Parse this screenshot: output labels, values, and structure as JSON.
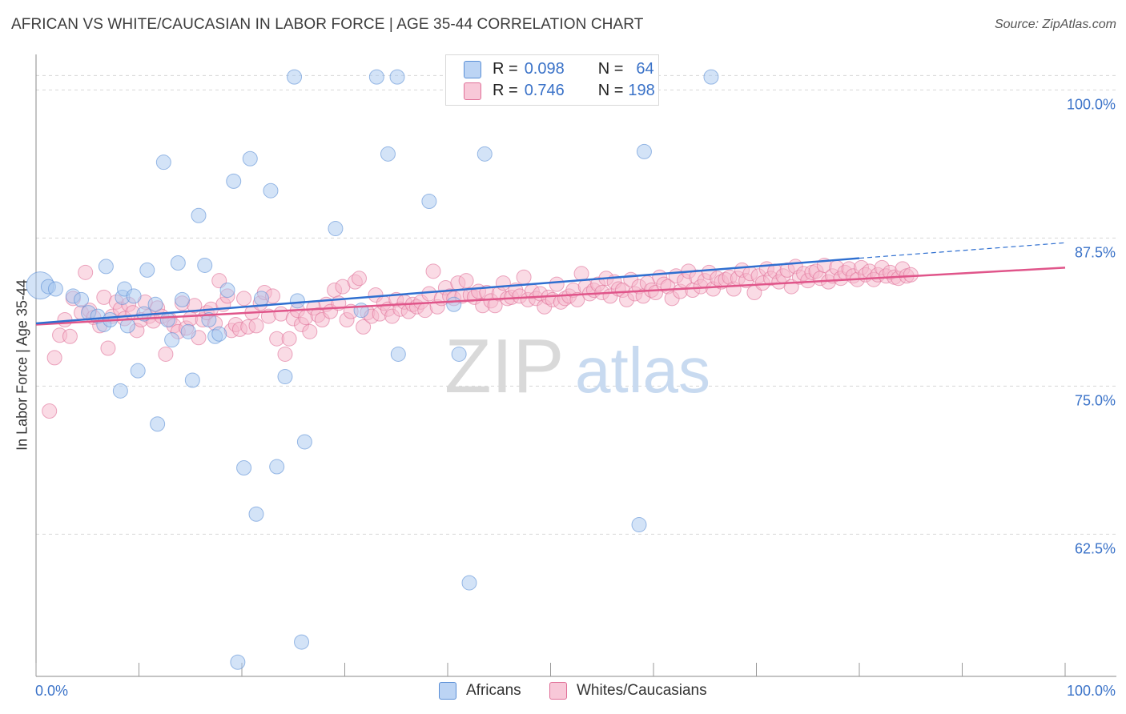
{
  "title": "AFRICAN VS WHITE/CAUCASIAN IN LABOR FORCE | AGE 35-44 CORRELATION CHART",
  "source": "Source: ZipAtlas.com",
  "watermark": {
    "zip": "ZIP",
    "atlas": "atlas"
  },
  "legend": {
    "r_label": "R =",
    "n_label": "N =",
    "series": [
      {
        "name": "Africans",
        "r": "0.098",
        "n": "64",
        "fill": "#a8c8f0",
        "stroke": "#5b8fd6"
      },
      {
        "name": "Whites/Caucasians",
        "r": "0.746",
        "n": "198",
        "fill": "#f5b8cc",
        "stroke": "#e07098"
      }
    ]
  },
  "colors": {
    "blue_line": "#2f6fd0",
    "pink_line": "#e0558a",
    "tick_text": "#3a72c8",
    "grid": "#d8d8d8"
  },
  "chart_data": {
    "type": "scatter",
    "title": "AFRICAN VS WHITE/CAUCASIAN IN LABOR FORCE | AGE 35-44 CORRELATION CHART",
    "xlabel": "",
    "ylabel": "In Labor Force | Age 35-44",
    "xlim": [
      0,
      100
    ],
    "ylim": [
      50.5,
      103
    ],
    "x_tick_labels": [
      "0.0%",
      "100.0%"
    ],
    "y_ticks": [
      62.5,
      75.0,
      87.5,
      100.0
    ],
    "y_tick_labels": [
      "62.5%",
      "75.0%",
      "87.5%",
      "100.0%"
    ],
    "grid": true,
    "legend_position": "top-center",
    "series": [
      {
        "name": "Africans",
        "trend": {
          "x": [
            0,
            80
          ],
          "y": [
            80.3,
            85.8
          ],
          "extend_to": [
            100,
            87.1
          ]
        },
        "points": [
          [
            0.4,
            83.5
          ],
          [
            1.2,
            83.4
          ],
          [
            1.9,
            83.2
          ],
          [
            3.6,
            82.6
          ],
          [
            4.4,
            82.3
          ],
          [
            5.1,
            81.2
          ],
          [
            6.0,
            80.9
          ],
          [
            6.6,
            80.2
          ],
          [
            7.2,
            80.6
          ],
          [
            6.8,
            85.1
          ],
          [
            8.4,
            82.5
          ],
          [
            8.2,
            74.6
          ],
          [
            8.6,
            83.2
          ],
          [
            8.9,
            80.1
          ],
          [
            9.5,
            82.6
          ],
          [
            9.9,
            76.3
          ],
          [
            10.5,
            81.1
          ],
          [
            10.8,
            84.8
          ],
          [
            11.6,
            81.9
          ],
          [
            11.8,
            71.8
          ],
          [
            12.4,
            93.9
          ],
          [
            12.8,
            80.6
          ],
          [
            13.2,
            78.9
          ],
          [
            13.8,
            85.4
          ],
          [
            14.2,
            82.3
          ],
          [
            14.8,
            79.6
          ],
          [
            15.2,
            75.5
          ],
          [
            15.8,
            89.4
          ],
          [
            16.4,
            85.2
          ],
          [
            16.8,
            80.6
          ],
          [
            17.4,
            79.2
          ],
          [
            17.8,
            79.4
          ],
          [
            18.6,
            83.1
          ],
          [
            19.2,
            92.3
          ],
          [
            19.6,
            51.7
          ],
          [
            20.2,
            68.1
          ],
          [
            20.8,
            94.2
          ],
          [
            21.4,
            64.2
          ],
          [
            21.9,
            82.4
          ],
          [
            22.8,
            91.5
          ],
          [
            23.4,
            68.2
          ],
          [
            24.2,
            75.8
          ],
          [
            25.1,
            101.1
          ],
          [
            25.4,
            82.2
          ],
          [
            25.8,
            53.4
          ],
          [
            26.1,
            70.3
          ],
          [
            29.1,
            88.3
          ],
          [
            31.6,
            81.4
          ],
          [
            33.1,
            101.1
          ],
          [
            34.2,
            94.6
          ],
          [
            35.1,
            101.1
          ],
          [
            35.2,
            77.7
          ],
          [
            38.2,
            90.6
          ],
          [
            40.6,
            81.9
          ],
          [
            41.1,
            77.7
          ],
          [
            42.1,
            58.4
          ],
          [
            43.6,
            94.6
          ],
          [
            58.6,
            63.3
          ],
          [
            59.1,
            94.8
          ],
          [
            65.6,
            101.1
          ]
        ]
      },
      {
        "name": "Whites/Caucasians",
        "trend": {
          "x": [
            0,
            100
          ],
          "y": [
            80.2,
            85.0
          ]
        },
        "points": [
          [
            1.3,
            72.9
          ],
          [
            1.8,
            77.4
          ],
          [
            2.3,
            79.3
          ],
          [
            2.8,
            80.6
          ],
          [
            3.3,
            79.2
          ],
          [
            3.6,
            82.4
          ],
          [
            4.4,
            81.2
          ],
          [
            4.8,
            84.6
          ],
          [
            5.2,
            81.4
          ],
          [
            5.6,
            80.8
          ],
          [
            6.2,
            80.1
          ],
          [
            6.6,
            82.5
          ],
          [
            7.0,
            78.2
          ],
          [
            7.4,
            80.9
          ],
          [
            7.8,
            82.1
          ],
          [
            8.2,
            81.5
          ],
          [
            8.6,
            80.7
          ],
          [
            9.0,
            81.9
          ],
          [
            9.4,
            81.2
          ],
          [
            9.8,
            79.7
          ],
          [
            10.2,
            80.6
          ],
          [
            10.6,
            82.1
          ],
          [
            11.0,
            80.9
          ],
          [
            11.4,
            80.5
          ],
          [
            11.8,
            81.6
          ],
          [
            12.2,
            80.9
          ],
          [
            12.6,
            77.7
          ],
          [
            13.0,
            80.6
          ],
          [
            13.4,
            80.1
          ],
          [
            13.8,
            79.6
          ],
          [
            14.2,
            82.0
          ],
          [
            14.6,
            79.9
          ],
          [
            15.0,
            80.7
          ],
          [
            15.4,
            81.8
          ],
          [
            15.8,
            79.1
          ],
          [
            16.2,
            80.6
          ],
          [
            16.6,
            81.2
          ],
          [
            17.0,
            81.5
          ],
          [
            17.4,
            80.3
          ],
          [
            17.8,
            83.9
          ],
          [
            18.2,
            81.9
          ],
          [
            18.6,
            82.6
          ],
          [
            19.0,
            79.7
          ],
          [
            19.4,
            80.2
          ],
          [
            19.8,
            79.8
          ],
          [
            20.2,
            82.4
          ],
          [
            20.6,
            80.0
          ],
          [
            21.0,
            81.2
          ],
          [
            21.4,
            80.1
          ],
          [
            21.8,
            82.0
          ],
          [
            22.2,
            82.9
          ],
          [
            22.6,
            80.9
          ],
          [
            23.0,
            82.6
          ],
          [
            23.4,
            79.0
          ],
          [
            23.8,
            81.1
          ],
          [
            24.2,
            77.7
          ],
          [
            24.6,
            79.0
          ],
          [
            25.0,
            80.7
          ],
          [
            25.4,
            81.4
          ],
          [
            25.8,
            80.2
          ],
          [
            26.2,
            80.8
          ],
          [
            26.6,
            79.6
          ],
          [
            27.0,
            81.6
          ],
          [
            27.4,
            81.0
          ],
          [
            27.8,
            80.6
          ],
          [
            28.2,
            81.9
          ],
          [
            28.6,
            81.3
          ],
          [
            29.0,
            83.1
          ],
          [
            29.4,
            82.0
          ],
          [
            29.8,
            83.4
          ],
          [
            30.2,
            80.6
          ],
          [
            30.6,
            81.3
          ],
          [
            31.0,
            83.8
          ],
          [
            31.4,
            84.1
          ],
          [
            31.8,
            80.0
          ],
          [
            32.2,
            81.2
          ],
          [
            32.6,
            80.9
          ],
          [
            33.0,
            82.7
          ],
          [
            33.4,
            81.1
          ],
          [
            33.8,
            82.0
          ],
          [
            34.2,
            81.5
          ],
          [
            34.6,
            80.9
          ],
          [
            35.0,
            82.3
          ],
          [
            35.4,
            81.5
          ],
          [
            35.8,
            82.1
          ],
          [
            36.2,
            81.3
          ],
          [
            36.6,
            81.9
          ],
          [
            37.0,
            81.7
          ],
          [
            37.4,
            82.1
          ],
          [
            37.8,
            81.4
          ],
          [
            38.2,
            82.8
          ],
          [
            38.6,
            84.7
          ],
          [
            39.0,
            81.7
          ],
          [
            39.4,
            82.4
          ],
          [
            39.8,
            83.3
          ],
          [
            40.2,
            82.6
          ],
          [
            40.6,
            82.4
          ],
          [
            41.0,
            83.7
          ],
          [
            41.4,
            82.6
          ],
          [
            41.8,
            83.9
          ],
          [
            42.2,
            82.7
          ],
          [
            42.6,
            82.5
          ],
          [
            43.0,
            83.0
          ],
          [
            43.4,
            81.8
          ],
          [
            43.8,
            82.9
          ],
          [
            44.2,
            82.2
          ],
          [
            44.6,
            81.8
          ],
          [
            45.0,
            82.8
          ],
          [
            45.4,
            83.7
          ],
          [
            45.8,
            82.4
          ],
          [
            46.2,
            82.5
          ],
          [
            46.6,
            83.1
          ],
          [
            47.0,
            82.6
          ],
          [
            47.4,
            84.2
          ],
          [
            47.8,
            82.3
          ],
          [
            48.2,
            83.0
          ],
          [
            48.6,
            82.4
          ],
          [
            49.0,
            82.8
          ],
          [
            49.4,
            81.7
          ],
          [
            49.8,
            82.5
          ],
          [
            50.2,
            82.3
          ],
          [
            50.6,
            83.6
          ],
          [
            51.0,
            82.1
          ],
          [
            51.4,
            82.4
          ],
          [
            51.8,
            82.6
          ],
          [
            52.2,
            83.1
          ],
          [
            52.6,
            82.3
          ],
          [
            53.0,
            84.5
          ],
          [
            53.4,
            83.4
          ],
          [
            53.8,
            82.8
          ],
          [
            54.2,
            83.1
          ],
          [
            54.6,
            83.6
          ],
          [
            55.0,
            82.9
          ],
          [
            55.4,
            84.1
          ],
          [
            55.8,
            82.6
          ],
          [
            56.2,
            83.8
          ],
          [
            56.6,
            83.2
          ],
          [
            57.0,
            83.1
          ],
          [
            57.4,
            82.3
          ],
          [
            57.8,
            84.0
          ],
          [
            58.2,
            82.8
          ],
          [
            58.6,
            83.4
          ],
          [
            59.0,
            82.6
          ],
          [
            59.4,
            83.7
          ],
          [
            59.8,
            83.1
          ],
          [
            60.2,
            82.9
          ],
          [
            60.6,
            84.2
          ],
          [
            61.0,
            83.6
          ],
          [
            61.4,
            83.4
          ],
          [
            61.8,
            82.4
          ],
          [
            62.2,
            84.3
          ],
          [
            62.6,
            83.0
          ],
          [
            63.0,
            83.9
          ],
          [
            63.4,
            84.7
          ],
          [
            63.8,
            83.1
          ],
          [
            64.2,
            84.2
          ],
          [
            64.6,
            83.4
          ],
          [
            65.0,
            83.9
          ],
          [
            65.4,
            84.6
          ],
          [
            65.8,
            83.2
          ],
          [
            66.2,
            84.1
          ],
          [
            66.6,
            83.8
          ],
          [
            67.0,
            84.0
          ],
          [
            67.4,
            84.2
          ],
          [
            67.8,
            83.2
          ],
          [
            68.2,
            84.1
          ],
          [
            68.6,
            84.8
          ],
          [
            69.0,
            83.9
          ],
          [
            69.4,
            84.5
          ],
          [
            69.8,
            82.9
          ],
          [
            70.2,
            84.3
          ],
          [
            70.6,
            83.7
          ],
          [
            71.0,
            84.9
          ],
          [
            71.4,
            84.1
          ],
          [
            71.8,
            84.7
          ],
          [
            72.2,
            83.8
          ],
          [
            72.6,
            84.3
          ],
          [
            73.0,
            84.8
          ],
          [
            73.4,
            83.4
          ],
          [
            73.8,
            85.1
          ],
          [
            74.2,
            84.2
          ],
          [
            74.6,
            84.5
          ],
          [
            75.0,
            83.9
          ],
          [
            75.4,
            84.6
          ],
          [
            75.8,
            84.7
          ],
          [
            76.2,
            84.1
          ],
          [
            76.6,
            85.2
          ],
          [
            77.0,
            83.8
          ],
          [
            77.4,
            84.3
          ],
          [
            77.8,
            85.0
          ],
          [
            78.2,
            84.1
          ],
          [
            78.6,
            84.6
          ],
          [
            79.0,
            84.9
          ],
          [
            79.4,
            84.3
          ],
          [
            79.8,
            84.0
          ],
          [
            80.2,
            85.0
          ],
          [
            80.6,
            84.4
          ],
          [
            81.0,
            84.7
          ],
          [
            81.4,
            84.0
          ],
          [
            81.8,
            84.4
          ],
          [
            82.2,
            85.0
          ],
          [
            82.6,
            84.3
          ],
          [
            83.0,
            84.6
          ],
          [
            83.4,
            84.2
          ],
          [
            83.8,
            84.1
          ],
          [
            84.2,
            84.9
          ],
          [
            84.6,
            84.3
          ],
          [
            85.0,
            84.4
          ]
        ]
      }
    ]
  }
}
